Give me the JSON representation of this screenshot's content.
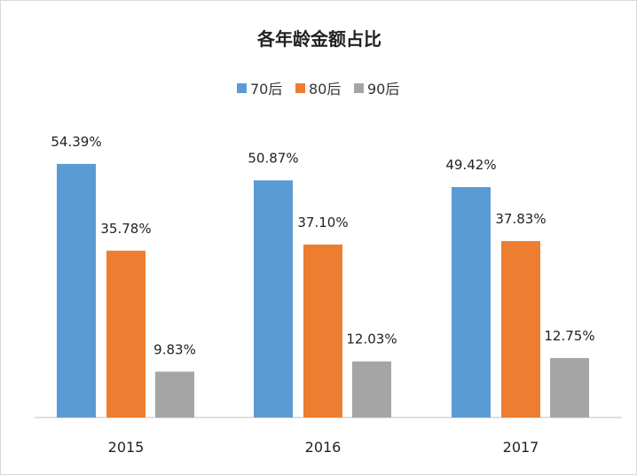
{
  "chart_data": {
    "type": "bar",
    "title": "各年龄金额占比",
    "categories": [
      "2015",
      "2016",
      "2017"
    ],
    "series": [
      {
        "name": "70后",
        "color": "#5B9BD5",
        "values": [
          54.39,
          50.87,
          49.42
        ],
        "labels": [
          "54.39%",
          "50.87%",
          "49.42%"
        ]
      },
      {
        "name": "80后",
        "color": "#ED7D31",
        "values": [
          35.78,
          37.1,
          37.83
        ],
        "labels": [
          "35.78%",
          "37.10%",
          "37.83%"
        ]
      },
      {
        "name": "90后",
        "color": "#A5A5A5",
        "values": [
          9.83,
          12.03,
          12.75
        ],
        "labels": [
          "9.83%",
          "12.03%",
          "12.75%"
        ]
      }
    ],
    "xlabel": "",
    "ylabel": "",
    "ylim": [
      0,
      60
    ],
    "grid": false,
    "legend": "top-center"
  }
}
